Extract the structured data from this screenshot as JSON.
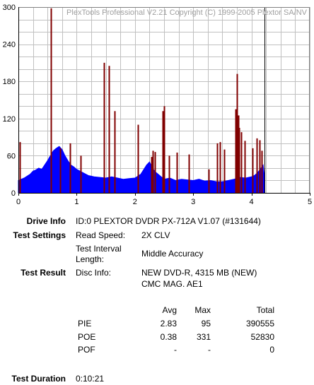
{
  "chart_data": {
    "type": "bar",
    "title": "PlexTools Professional V2.21 Copyright (C) 1999-2005 Plextor SA/NV",
    "xlabel": "",
    "ylabel": "",
    "xlim": [
      0,
      5
    ],
    "ylim": [
      0,
      300
    ],
    "x_ticks": [
      "0",
      "1",
      "2",
      "3",
      "4",
      "5"
    ],
    "y_ticks": [
      "0",
      "60",
      "120",
      "180",
      "240",
      "300"
    ],
    "grid": true,
    "scan_end_gb": 4.22,
    "colors": {
      "pie": "#0000ff",
      "poe": "#800000",
      "grid": "#c0c0c0",
      "end_line": "#000000"
    },
    "series": [
      {
        "type": "area",
        "color": "#0000ff",
        "x": [
          0,
          0.05,
          0.1,
          0.15,
          0.2,
          0.25,
          0.3,
          0.35,
          0.4,
          0.45,
          0.5,
          0.55,
          0.6,
          0.65,
          0.7,
          0.75,
          0.8,
          0.85,
          0.9,
          0.95,
          1.0,
          1.1,
          1.2,
          1.3,
          1.4,
          1.5,
          1.6,
          1.7,
          1.8,
          1.9,
          2.0,
          2.1,
          2.2,
          2.25,
          2.3,
          2.35,
          2.4,
          2.5,
          2.6,
          2.7,
          2.8,
          2.9,
          3.0,
          3.1,
          3.2,
          3.3,
          3.4,
          3.5,
          3.6,
          3.7,
          3.8,
          3.9,
          4.0,
          4.05,
          4.1,
          4.15,
          4.2,
          4.22
        ],
        "values": [
          20,
          22,
          24,
          27,
          30,
          35,
          37,
          40,
          38,
          45,
          52,
          60,
          68,
          72,
          75,
          70,
          60,
          52,
          45,
          42,
          38,
          33,
          28,
          26,
          25,
          24,
          26,
          24,
          22,
          23,
          24,
          30,
          45,
          50,
          40,
          34,
          30,
          22,
          24,
          20,
          22,
          21,
          20,
          22,
          19,
          20,
          18,
          18,
          20,
          22,
          25,
          24,
          26,
          28,
          32,
          38,
          45,
          30
        ]
      },
      {
        "type": "spikes",
        "color": "#800000",
        "x": [
          0.02,
          0.56,
          0.72,
          0.89,
          1.07,
          1.47,
          1.55,
          1.65,
          2.05,
          2.28,
          2.31,
          2.34,
          2.47,
          2.5,
          2.58,
          2.72,
          2.92,
          3.27,
          3.41,
          3.46,
          3.53,
          3.73,
          3.75,
          3.77,
          3.79,
          3.82,
          3.88,
          4.02,
          4.09,
          4.14,
          4.18
        ],
        "values": [
          82,
          298,
          72,
          80,
          60,
          210,
          205,
          132,
          110,
          58,
          68,
          66,
          132,
          140,
          60,
          65,
          62,
          38,
          80,
          82,
          70,
          135,
          192,
          125,
          105,
          98,
          84,
          72,
          88,
          85,
          68
        ]
      }
    ]
  },
  "info": {
    "drive_info_label": "Drive Info",
    "drive_info_value": "ID:0 PLEXTOR DVDR PX-712A V1.07 (#131644)",
    "test_settings_label": "Test Settings",
    "read_speed_label": "Read Speed:",
    "read_speed_value": "2X CLV",
    "interval_label_1": "Test Interval",
    "interval_label_2": "Length:",
    "interval_value": "Middle Accuracy",
    "test_result_label": "Test Result",
    "disc_info_label": "Disc Info:",
    "disc_info_value_1": "NEW DVD-R, 4315 MB (NEW)",
    "disc_info_value_2": "CMC MAG. AE1",
    "test_duration_label": "Test Duration",
    "test_duration_value": "0:10:21"
  },
  "stats": {
    "headers": [
      "Avg",
      "Max",
      "Total"
    ],
    "rows": [
      {
        "name": "PIE",
        "avg": "2.83",
        "max": "95",
        "total": "390555"
      },
      {
        "name": "POE",
        "avg": "0.38",
        "max": "331",
        "total": "52830"
      },
      {
        "name": "POF",
        "avg": "-",
        "max": "-",
        "total": "0"
      }
    ]
  }
}
